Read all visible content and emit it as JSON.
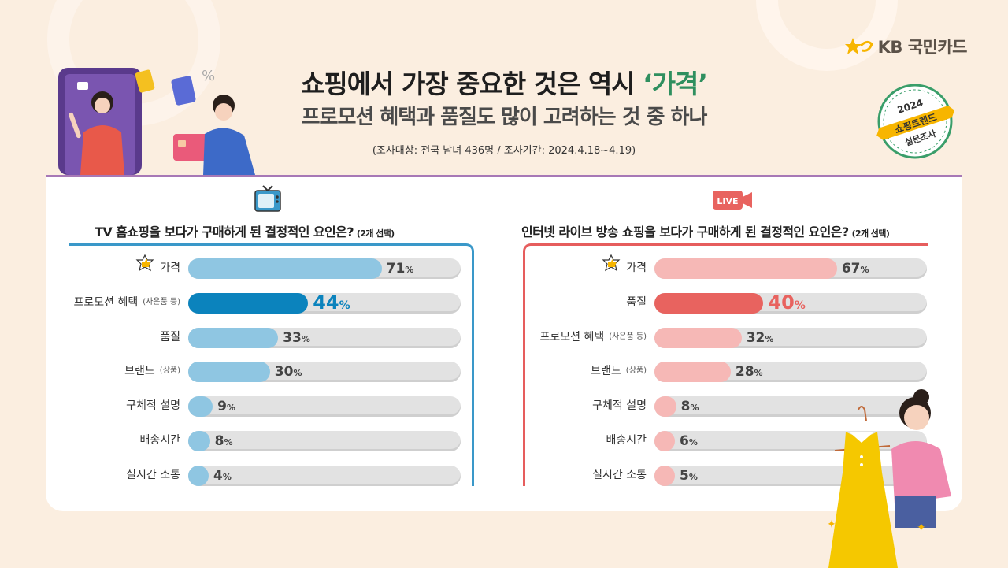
{
  "header": {
    "title_main": "쇼핑에서 가장 중요한 것은 역시 ",
    "title_highlight": "‘가격’",
    "subtitle": "프로모션 혜택과 품질도 많이 고려하는 것 중 하나",
    "survey_info": "(조사대상: 전국 남녀 436명 / 조사기간: 2024.4.18~4.19)"
  },
  "brand": {
    "name": "KB 국민카드"
  },
  "badge": {
    "year": "2024",
    "line1": "쇼핑트렌드",
    "line2": "설문조사"
  },
  "icons": {
    "tv": "tv-icon",
    "live": "live-camera-icon",
    "thumb": "thumbs-up-icon",
    "live_label": "LIVE"
  },
  "colors": {
    "tv_accent": "#0b83bd",
    "tv_light": "#8fc6e2",
    "live_accent": "#e8635f",
    "live_light": "#f6b8b6",
    "track": "#e2e2e2",
    "title_highlight": "#2f8f5f"
  },
  "chart_data": [
    {
      "type": "bar",
      "title": "TV 홈쇼핑을 보다가 구매하게 된 결정적인 요인은?",
      "note": "(2개 선택)",
      "unit": "%",
      "categories": [
        "가격",
        "프로모션 혜택",
        "품질",
        "브랜드",
        "구체적 설명",
        "배송시간",
        "실시간 소통"
      ],
      "category_notes": [
        "",
        "(사은품 등)",
        "",
        "(상품)",
        "",
        "",
        ""
      ],
      "values": [
        71,
        44,
        33,
        30,
        9,
        8,
        4
      ],
      "highlight_index": 1,
      "top_index": 0,
      "xlim": [
        0,
        100
      ]
    },
    {
      "type": "bar",
      "title": "인터넷 라이브 방송 쇼핑을 보다가 구매하게 된 결정적인 요인은?",
      "note": "(2개 선택)",
      "unit": "%",
      "categories": [
        "가격",
        "품질",
        "프로모션 혜택",
        "브랜드",
        "구체적 설명",
        "배송시간",
        "실시간 소통"
      ],
      "category_notes": [
        "",
        "",
        "(사은품 등)",
        "(상품)",
        "",
        "",
        ""
      ],
      "values": [
        67,
        40,
        32,
        28,
        8,
        6,
        5
      ],
      "highlight_index": 1,
      "top_index": 0,
      "xlim": [
        0,
        100
      ]
    }
  ]
}
